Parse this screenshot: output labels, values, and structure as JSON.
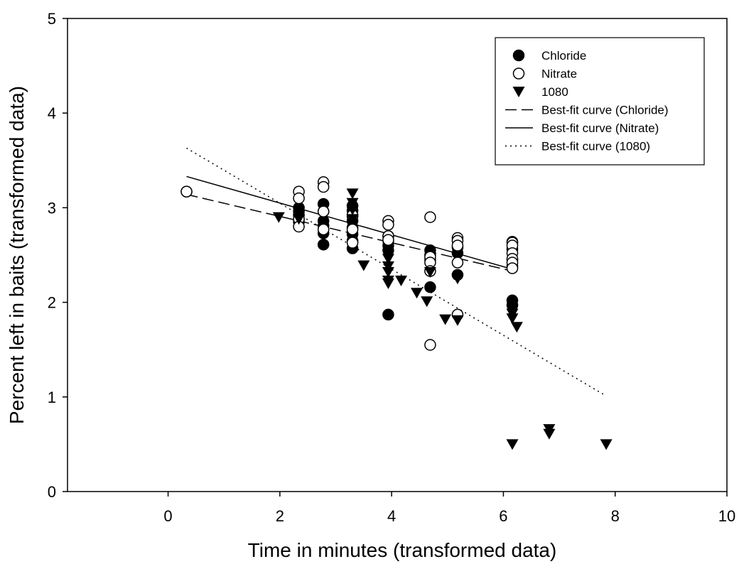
{
  "chart_data": {
    "type": "scatter",
    "xlabel": "Time in minutes (transformed data)",
    "ylabel": "Percent left in baits (transformed data)",
    "xlim": [
      -1.8,
      10
    ],
    "ylim": [
      0,
      5
    ],
    "xticks": [
      0,
      2,
      4,
      6,
      8,
      10
    ],
    "yticks": [
      0,
      1,
      2,
      3,
      4,
      5
    ],
    "grid": false,
    "legend_position": "top-right",
    "series": [
      {
        "name": "Chloride",
        "marker": "filled-circle",
        "color": "#000000",
        "points": [
          [
            0.33,
            3.17
          ],
          [
            2.34,
            3.0
          ],
          [
            2.34,
            2.96
          ],
          [
            2.34,
            2.92
          ],
          [
            2.34,
            2.88
          ],
          [
            2.34,
            2.85
          ],
          [
            2.78,
            3.04
          ],
          [
            2.78,
            2.96
          ],
          [
            2.78,
            2.86
          ],
          [
            2.78,
            2.81
          ],
          [
            2.78,
            2.73
          ],
          [
            2.78,
            2.61
          ],
          [
            3.3,
            3.02
          ],
          [
            3.3,
            2.97
          ],
          [
            3.3,
            2.91
          ],
          [
            3.3,
            2.86
          ],
          [
            3.3,
            2.79
          ],
          [
            3.3,
            2.72
          ],
          [
            3.3,
            2.65
          ],
          [
            3.3,
            2.57
          ],
          [
            3.94,
            2.7
          ],
          [
            3.94,
            2.65
          ],
          [
            3.94,
            2.6
          ],
          [
            3.94,
            2.55
          ],
          [
            3.94,
            1.87
          ],
          [
            4.69,
            2.55
          ],
          [
            4.69,
            2.5
          ],
          [
            4.69,
            2.45
          ],
          [
            4.69,
            2.16
          ],
          [
            5.18,
            2.58
          ],
          [
            5.18,
            2.52
          ],
          [
            5.18,
            2.29
          ],
          [
            6.16,
            2.64
          ],
          [
            6.16,
            2.56
          ],
          [
            6.16,
            2.45
          ],
          [
            6.16,
            2.38
          ],
          [
            6.16,
            2.02
          ],
          [
            6.16,
            1.97
          ]
        ]
      },
      {
        "name": "Nitrate",
        "marker": "open-circle",
        "color": "#000000",
        "points": [
          [
            0.33,
            3.17
          ],
          [
            2.34,
            3.17
          ],
          [
            2.34,
            3.1
          ],
          [
            2.34,
            2.88
          ],
          [
            2.34,
            2.8
          ],
          [
            2.78,
            3.27
          ],
          [
            2.78,
            3.22
          ],
          [
            2.78,
            2.96
          ],
          [
            2.78,
            2.77
          ],
          [
            3.3,
            2.92
          ],
          [
            3.3,
            2.77
          ],
          [
            3.3,
            2.63
          ],
          [
            3.94,
            2.86
          ],
          [
            3.94,
            2.82
          ],
          [
            3.94,
            2.7
          ],
          [
            3.94,
            2.66
          ],
          [
            4.69,
            2.9
          ],
          [
            4.69,
            2.48
          ],
          [
            4.69,
            2.42
          ],
          [
            4.69,
            2.33
          ],
          [
            4.69,
            1.55
          ],
          [
            5.18,
            2.68
          ],
          [
            5.18,
            2.65
          ],
          [
            5.18,
            2.6
          ],
          [
            5.18,
            2.42
          ],
          [
            5.18,
            1.87
          ],
          [
            6.16,
            2.63
          ],
          [
            6.16,
            2.6
          ],
          [
            6.16,
            2.52
          ],
          [
            6.16,
            2.46
          ],
          [
            6.16,
            2.42
          ],
          [
            6.16,
            2.36
          ]
        ]
      },
      {
        "name": "1080",
        "marker": "filled-triangle-down",
        "color": "#000000",
        "points": [
          [
            1.98,
            2.9
          ],
          [
            2.34,
            2.88
          ],
          [
            3.3,
            3.15
          ],
          [
            3.3,
            3.05
          ],
          [
            3.3,
            2.98
          ],
          [
            3.3,
            2.88
          ],
          [
            3.5,
            2.39
          ],
          [
            3.94,
            2.46
          ],
          [
            3.94,
            2.38
          ],
          [
            3.94,
            2.32
          ],
          [
            3.94,
            2.23
          ],
          [
            3.94,
            2.2
          ],
          [
            4.17,
            2.23
          ],
          [
            4.45,
            2.1
          ],
          [
            4.63,
            2.01
          ],
          [
            4.69,
            2.32
          ],
          [
            4.96,
            1.82
          ],
          [
            5.18,
            2.25
          ],
          [
            5.18,
            1.81
          ],
          [
            6.16,
            1.88
          ],
          [
            6.16,
            1.83
          ],
          [
            6.16,
            0.5
          ],
          [
            6.24,
            1.74
          ],
          [
            6.82,
            0.66
          ],
          [
            6.82,
            0.61
          ],
          [
            7.84,
            0.5
          ]
        ]
      }
    ],
    "fit_lines": [
      {
        "name": "Best-fit curve (Chloride)",
        "style": "dashed",
        "x": [
          0.33,
          6.16
        ],
        "y": [
          3.14,
          2.33
        ]
      },
      {
        "name": "Best-fit curve (Nitrate)",
        "style": "solid",
        "x": [
          0.33,
          6.16
        ],
        "y": [
          3.33,
          2.35
        ]
      },
      {
        "name": "Best-fit curve (1080)",
        "style": "dotted",
        "x": [
          0.33,
          7.84
        ],
        "y": [
          3.63,
          1.01
        ]
      }
    ]
  }
}
